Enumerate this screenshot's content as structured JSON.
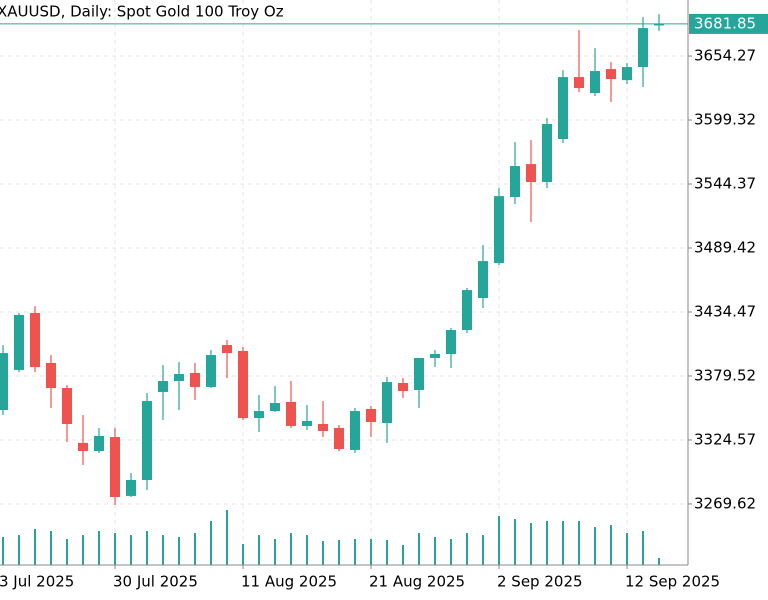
{
  "chart_data": {
    "type": "candlestick",
    "title": "XAUUSD, Daily:  Spot Gold 100 Troy Oz",
    "categories": [
      "3 Jul 2025",
      null,
      null,
      null,
      null,
      null,
      null,
      null,
      "30 Jul 2025",
      null,
      null,
      null,
      null,
      null,
      null,
      null,
      "11 Aug 2025",
      null,
      null,
      null,
      null,
      null,
      null,
      null,
      "21 Aug 2025",
      null,
      null,
      null,
      null,
      null,
      null,
      null,
      "2 Sep 2025",
      null,
      null,
      null,
      null,
      null,
      null,
      null,
      "12 Sep 2025",
      null,
      null
    ],
    "open": [
      null,
      3350.3,
      3384.7,
      3433.6,
      3390.7,
      3369.2,
      3322.0,
      3315.1,
      3327.1,
      3276.5,
      3290.2,
      3365.8,
      3375.2,
      3382.1,
      3370.1,
      3406.1,
      3401.0,
      3343.4,
      3349.4,
      3357.2,
      3336.6,
      3338.3,
      3334.9,
      3316.0,
      3351.2,
      3339.1,
      3373.5,
      3367.5,
      3395.0,
      3398.4,
      3419.0,
      3446.5,
      3476.5,
      3533.2,
      3561.5,
      3546.1,
      3583.0,
      3636.2,
      3622.5,
      3643.1,
      3633.6,
      3644.8,
      3680.9
    ],
    "high": [
      null,
      3406.1,
      3433.6,
      3439.6,
      3397.5,
      3371.8,
      3346.0,
      3334.9,
      3334.9,
      3296.2,
      3364.9,
      3388.9,
      3391.5,
      3390.7,
      3401.8,
      3410.4,
      3404.4,
      3363.2,
      3370.9,
      3375.2,
      3354.6,
      3358.0,
      3337.4,
      3352.0,
      3353.7,
      3378.6,
      3377.8,
      3395.0,
      3401.8,
      3420.7,
      3455.1,
      3492.0,
      3540.9,
      3580.4,
      3582.1,
      3601.0,
      3642.2,
      3676.6,
      3661.1,
      3649.1,
      3648.2,
      3687.8,
      3690.3
    ],
    "low": [
      null,
      3346.0,
      3382.9,
      3382.9,
      3352.0,
      3322.8,
      3303.1,
      3313.4,
      3268.7,
      3275.6,
      3281.6,
      3341.7,
      3350.3,
      3358.9,
      3369.2,
      3377.8,
      3341.7,
      3331.4,
      3348.6,
      3334.9,
      3333.1,
      3327.1,
      3315.1,
      3313.4,
      3327.1,
      3322.0,
      3360.6,
      3352.0,
      3387.2,
      3386.4,
      3416.4,
      3437.9,
      3474.8,
      3527.2,
      3511.7,
      3540.9,
      3579.6,
      3623.3,
      3619.9,
      3614.8,
      3630.2,
      3627.6,
      3675.7
    ],
    "close": [
      null,
      3399.2,
      3431.9,
      3387.2,
      3369.2,
      3338.3,
      3315.1,
      3328.0,
      3275.6,
      3290.2,
      3358.0,
      3375.2,
      3381.2,
      3370.1,
      3397.5,
      3399.2,
      3343.4,
      3349.4,
      3356.3,
      3336.6,
      3340.9,
      3332.3,
      3316.8,
      3349.4,
      3340.0,
      3374.3,
      3366.6,
      3395.0,
      3398.4,
      3419.0,
      3453.3,
      3478.2,
      3534.0,
      3559.8,
      3546.1,
      3595.9,
      3636.2,
      3626.8,
      3641.4,
      3634.5,
      3644.8,
      3678.3,
      3681.85
    ],
    "volume": [
      null,
      28,
      30,
      36,
      34,
      26,
      30,
      34,
      32,
      30,
      34,
      30,
      28,
      32,
      44,
      55,
      21,
      30,
      26,
      32,
      30,
      24,
      25,
      26,
      26,
      25,
      20,
      32,
      28,
      26,
      32,
      30,
      49,
      46,
      42,
      44,
      44,
      44,
      38,
      40,
      32,
      34,
      7
    ],
    "last_price": 3681.85,
    "up_color": "#26a69a",
    "down_color": "#ef5350",
    "volume_color": "#26a69a",
    "ylim": [
      3217.2,
      3702.4
    ],
    "yticks": [
      3269.62,
      3324.57,
      3379.52,
      3434.47,
      3489.42,
      3544.37,
      3599.32,
      3654.27
    ],
    "grid": true
  }
}
